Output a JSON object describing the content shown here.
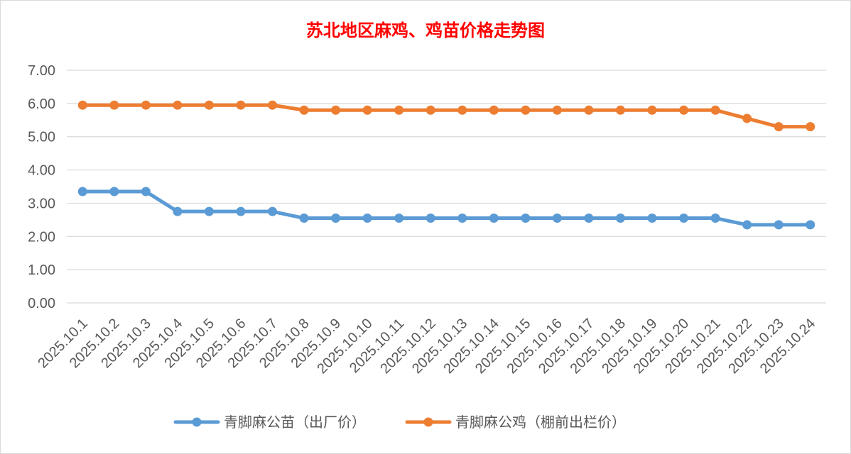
{
  "chart_data": {
    "type": "line",
    "title": "苏北地区麻鸡、鸡苗价格走势图",
    "xlabel": "",
    "ylabel": "",
    "ylim": [
      0,
      7
    ],
    "ytick_values": [
      0,
      1,
      2,
      3,
      4,
      5,
      6,
      7
    ],
    "ytick_labels": [
      "0.00",
      "1.00",
      "2.00",
      "3.00",
      "4.00",
      "5.00",
      "6.00",
      "7.00"
    ],
    "grid": true,
    "legend_position": "bottom",
    "categories": [
      "2025.10.1",
      "2025.10.2",
      "2025.10.3",
      "2025.10.4",
      "2025.10.5",
      "2025.10.6",
      "2025.10.7",
      "2025.10.8",
      "2025.10.9",
      "2025.10.10",
      "2025.10.11",
      "2025.10.12",
      "2025.10.13",
      "2025.10.14",
      "2025.10.15",
      "2025.10.16",
      "2025.10.17",
      "2025.10.18",
      "2025.10.19",
      "2025.10.20",
      "2025.10.21",
      "2025.10.22",
      "2025.10.23",
      "2025.10.24"
    ],
    "series": [
      {
        "name": "青脚麻公苗（出厂价）",
        "color": "#5b9bd5",
        "values": [
          3.35,
          3.35,
          3.35,
          2.75,
          2.75,
          2.75,
          2.75,
          2.55,
          2.55,
          2.55,
          2.55,
          2.55,
          2.55,
          2.55,
          2.55,
          2.55,
          2.55,
          2.55,
          2.55,
          2.55,
          2.55,
          2.35,
          2.35,
          2.35
        ]
      },
      {
        "name": "青脚麻公鸡（棚前出栏价）",
        "color": "#ed7d31",
        "values": [
          5.95,
          5.95,
          5.95,
          5.95,
          5.95,
          5.95,
          5.95,
          5.8,
          5.8,
          5.8,
          5.8,
          5.8,
          5.8,
          5.8,
          5.8,
          5.8,
          5.8,
          5.8,
          5.8,
          5.8,
          5.8,
          5.55,
          5.3,
          5.3
        ]
      }
    ]
  }
}
